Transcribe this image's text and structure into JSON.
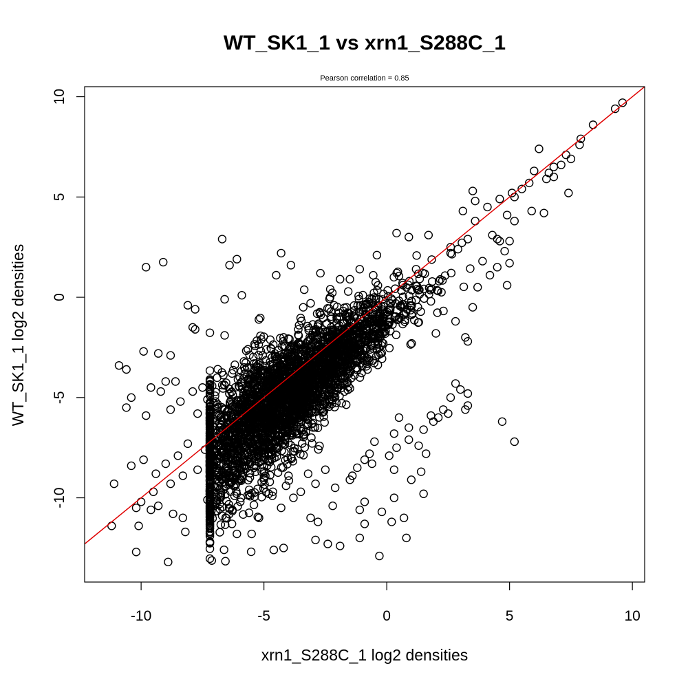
{
  "chart_data": {
    "type": "scatter",
    "title": "WT_SK1_1 vs xrn1_S288C_1",
    "subtitle": "Pearson correlation =  0.85",
    "xlabel": "xrn1_S288C_1 log2 densities",
    "ylabel": "WT_SK1_1 log2 densities",
    "xlim": [
      -12.3,
      10.5
    ],
    "ylim": [
      -14.2,
      10.5
    ],
    "x_ticks": [
      -10,
      -5,
      0,
      5,
      10
    ],
    "y_ticks": [
      -10,
      -5,
      0,
      5,
      10
    ],
    "x_tick_labels": [
      "-10",
      "-5",
      "0",
      "5",
      "10"
    ],
    "y_tick_labels": [
      "-10",
      "-5",
      "0",
      "5",
      "10"
    ],
    "grid": false,
    "marker": "open-circle",
    "point_color": "#000000",
    "line_color": "#e00000",
    "regression_line": {
      "slope": 1.0,
      "intercept": 0.0
    },
    "points": [
      [
        9.6,
        9.7
      ],
      [
        9.3,
        9.4
      ],
      [
        8.4,
        8.6
      ],
      [
        7.9,
        7.9
      ],
      [
        7.85,
        7.6
      ],
      [
        7.5,
        6.9
      ],
      [
        7.3,
        7.1
      ],
      [
        7.1,
        6.6
      ],
      [
        6.8,
        6.5
      ],
      [
        6.6,
        6.2
      ],
      [
        6.2,
        7.4
      ],
      [
        6.0,
        6.3
      ],
      [
        5.8,
        5.7
      ],
      [
        5.5,
        5.4
      ],
      [
        5.2,
        5.0
      ],
      [
        6.8,
        6.0
      ],
      [
        7.4,
        5.2
      ],
      [
        6.5,
        5.9
      ],
      [
        5.9,
        4.3
      ],
      [
        6.4,
        4.2
      ],
      [
        5.1,
        5.2
      ],
      [
        3.5,
        5.3
      ],
      [
        4.1,
        4.5
      ],
      [
        3.6,
        4.8
      ],
      [
        4.6,
        4.9
      ],
      [
        4.9,
        4.1
      ],
      [
        4.3,
        3.1
      ],
      [
        4.5,
        2.9
      ],
      [
        5.0,
        2.8
      ],
      [
        3.6,
        3.8
      ],
      [
        3.1,
        4.3
      ],
      [
        5.2,
        3.8
      ],
      [
        3.3,
        2.9
      ],
      [
        2.9,
        2.4
      ],
      [
        2.6,
        2.2
      ],
      [
        4.7,
        -6.2
      ],
      [
        5.2,
        -7.2
      ],
      [
        3.2,
        -5.6
      ],
      [
        3.3,
        -5.4
      ],
      [
        0.7,
        -11.0
      ],
      [
        0.8,
        -12.0
      ],
      [
        -0.3,
        -12.9
      ],
      [
        -1.1,
        -12.0
      ],
      [
        -2.4,
        -12.3
      ],
      [
        -2.9,
        -12.1
      ],
      [
        -1.9,
        -12.4
      ],
      [
        -4.2,
        -12.5
      ],
      [
        -4.6,
        -12.6
      ],
      [
        -5.5,
        -11.8
      ],
      [
        -6.3,
        -11.3
      ],
      [
        -6.1,
        -11.8
      ],
      [
        -8.9,
        -13.2
      ],
      [
        -10.2,
        -12.7
      ],
      [
        -11.2,
        -11.4
      ],
      [
        -10.1,
        -11.4
      ],
      [
        -11.1,
        -9.3
      ],
      [
        -9.8,
        1.5
      ],
      [
        -9.1,
        1.75
      ],
      [
        -6.7,
        2.9
      ],
      [
        -6.4,
        1.6
      ],
      [
        -6.1,
        1.9
      ],
      [
        -4.3,
        2.2
      ],
      [
        -3.9,
        1.6
      ],
      [
        -4.5,
        1.1
      ],
      [
        -2.7,
        1.2
      ],
      [
        -1.9,
        0.9
      ],
      [
        -5.9,
        0.1
      ],
      [
        -6.6,
        -0.1
      ],
      [
        -7.8,
        -0.6
      ],
      [
        -8.1,
        -0.4
      ],
      [
        -7.9,
        -1.5
      ],
      [
        -7.8,
        -1.6
      ],
      [
        -6.6,
        -1.9
      ],
      [
        -3.1,
        -0.3
      ],
      [
        -3.4,
        -0.5
      ],
      [
        -10.9,
        -3.4
      ],
      [
        -10.6,
        -3.6
      ],
      [
        -9.9,
        -2.7
      ],
      [
        -9.3,
        -2.8
      ],
      [
        -8.8,
        -2.9
      ],
      [
        -10.4,
        -5.0
      ],
      [
        -10.6,
        -5.5
      ],
      [
        -9.8,
        -5.9
      ],
      [
        -9.2,
        -4.7
      ],
      [
        -9.0,
        -4.2
      ],
      [
        -8.6,
        -4.2
      ],
      [
        -9.6,
        -4.5
      ],
      [
        -10.4,
        -8.4
      ],
      [
        -9.9,
        -8.1
      ],
      [
        -10.2,
        -10.5
      ],
      [
        -9.6,
        -10.6
      ],
      [
        -10.0,
        -10.2
      ],
      [
        -9.3,
        -10.4
      ],
      [
        -8.7,
        -10.8
      ],
      [
        -9.5,
        -9.7
      ],
      [
        -8.3,
        -11.0
      ],
      [
        -8.2,
        -11.7
      ],
      [
        -7.3,
        -10.1
      ],
      [
        -6.8,
        -10.3
      ],
      [
        -6.7,
        -10.9
      ],
      [
        -5.2,
        -11.0
      ],
      [
        -4.3,
        -10.5
      ],
      [
        -3.8,
        -10.0
      ],
      [
        -3.1,
        -11.0
      ],
      [
        -2.8,
        -11.2
      ],
      [
        -2.2,
        -10.4
      ],
      [
        -1.1,
        -10.6
      ],
      [
        -0.9,
        -11.3
      ],
      [
        -0.2,
        -10.7
      ],
      [
        -0.9,
        -10.2
      ],
      [
        0.3,
        -10.0
      ],
      [
        0.2,
        -11.2
      ],
      [
        1.0,
        -9.1
      ],
      [
        1.4,
        -8.7
      ],
      [
        1.5,
        -9.8
      ],
      [
        1.3,
        -7.4
      ],
      [
        1.6,
        -7.8
      ],
      [
        0.3,
        -6.8
      ],
      [
        0.5,
        -6.0
      ],
      [
        2.5,
        -5.8
      ],
      [
        2.6,
        -5.0
      ],
      [
        2.8,
        -4.3
      ],
      [
        3.0,
        -4.6
      ],
      [
        3.3,
        -4.8
      ],
      [
        2.1,
        -6.0
      ],
      [
        1.8,
        -5.9
      ],
      [
        0.9,
        -6.5
      ],
      [
        -0.5,
        -7.2
      ],
      [
        -0.9,
        -8.1
      ],
      [
        -0.7,
        -7.8
      ],
      [
        0.3,
        -8.6
      ],
      [
        -1.4,
        -8.9
      ],
      [
        3.2,
        -2.0
      ],
      [
        3.3,
        -2.2
      ],
      [
        2.8,
        -1.2
      ],
      [
        2.0,
        -1.8
      ],
      [
        3.5,
        -0.5
      ],
      [
        3.7,
        0.5
      ],
      [
        4.2,
        1.1
      ],
      [
        4.9,
        0.6
      ],
      [
        4.5,
        1.5
      ],
      [
        3.9,
        1.8
      ],
      [
        2.6,
        2.5
      ],
      [
        4.8,
        2.3
      ],
      [
        5.0,
        1.7
      ],
      [
        4.6,
        2.8
      ],
      [
        -2.3,
        0.4
      ],
      [
        -1.5,
        0.9
      ],
      [
        -1.1,
        1.4
      ],
      [
        -0.4,
        2.1
      ],
      [
        0.4,
        3.2
      ],
      [
        0.9,
        3.0
      ],
      [
        1.7,
        3.1
      ],
      [
        -3.6,
        -1.6
      ],
      [
        -4.2,
        -2.0
      ],
      [
        -4.9,
        -2.6
      ],
      [
        -5.4,
        -3.3
      ],
      [
        -5.8,
        -3.5
      ],
      [
        -6.3,
        -3.8
      ],
      [
        -7.5,
        -4.5
      ],
      [
        -7.9,
        -4.7
      ],
      [
        -7.3,
        -5.1
      ],
      [
        -7.7,
        -5.8
      ],
      [
        -8.4,
        -5.2
      ],
      [
        -8.8,
        -5.6
      ],
      [
        -6.9,
        -5.9
      ],
      [
        -6.5,
        -6.5
      ],
      [
        -6.9,
        -7.1
      ],
      [
        -7.4,
        -7.6
      ],
      [
        -8.1,
        -7.3
      ],
      [
        -8.5,
        -7.9
      ],
      [
        -9.0,
        -8.3
      ],
      [
        -9.4,
        -8.8
      ],
      [
        -8.8,
        -9.3
      ],
      [
        -8.3,
        -8.9
      ],
      [
        -7.7,
        -8.6
      ],
      [
        -7.2,
        -9.2
      ],
      [
        -6.8,
        -9.6
      ],
      [
        -6.2,
        -9.9
      ],
      [
        -5.6,
        -9.6
      ],
      [
        -4.8,
        -9.8
      ],
      [
        -4.1,
        -9.4
      ],
      [
        -3.5,
        -9.7
      ],
      [
        -2.9,
        -9.3
      ],
      [
        -2.1,
        -9.5
      ],
      [
        -1.5,
        -9.1
      ],
      [
        -1.2,
        -8.5
      ],
      [
        -0.6,
        -8.3
      ],
      [
        0.1,
        -7.9
      ],
      [
        0.4,
        -7.5
      ],
      [
        0.9,
        -7.1
      ],
      [
        1.5,
        -6.6
      ],
      [
        1.9,
        -6.2
      ],
      [
        2.3,
        -5.6
      ],
      [
        -2.5,
        -8.6
      ],
      [
        -3.2,
        -8.8
      ],
      [
        -4.0,
        -8.9
      ],
      [
        -5.0,
        -9.0
      ],
      [
        -5.9,
        -8.9
      ],
      [
        -6.3,
        -8.4
      ]
    ]
  }
}
